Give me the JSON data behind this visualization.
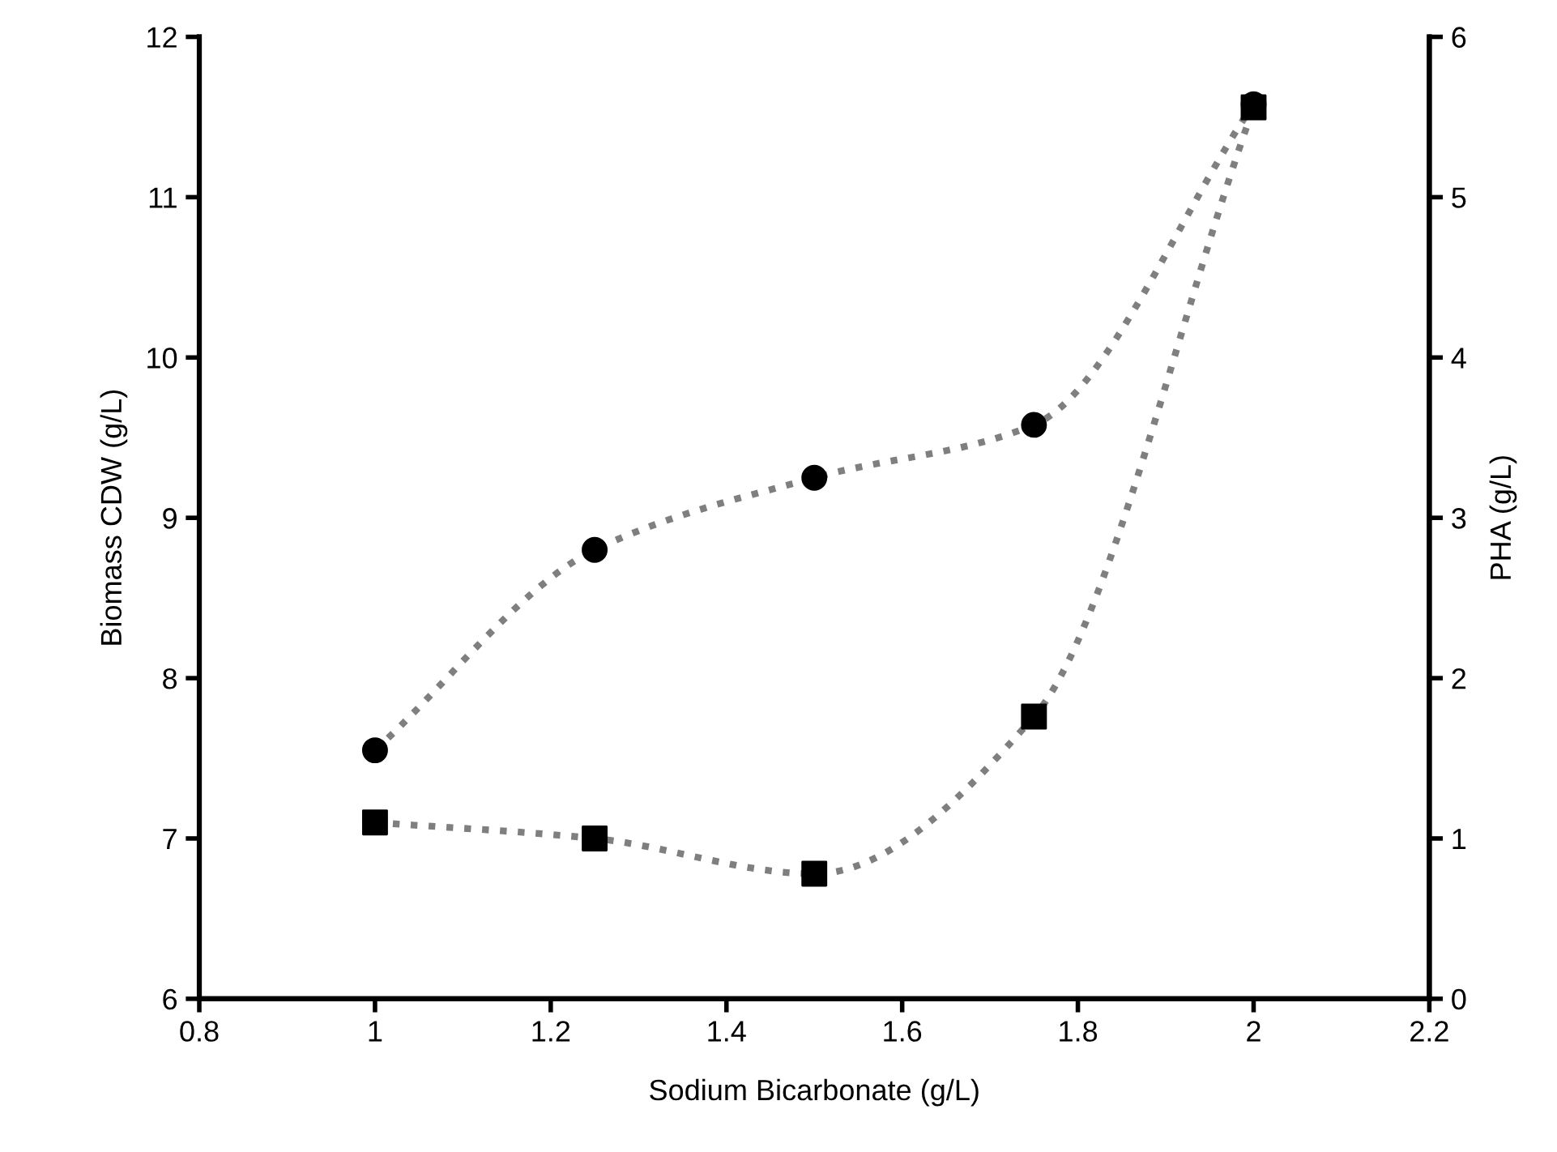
{
  "chart_data": {
    "type": "line",
    "xlabel": "Sodium Bicarbonate (g/L)",
    "ylabel": "Biomass CDW (g/L)",
    "y2label": "PHA (g/L)",
    "x": [
      1,
      1.25,
      1.5,
      1.75,
      2
    ],
    "series": [
      {
        "color": "#000000",
        "marker": "square",
        "values": [
          7.1,
          7.0,
          6.78,
          7.76,
          11.56
        ]
      },
      {
        "axis": "y2",
        "color": "#000000",
        "marker": "circle",
        "values": [
          1.55,
          2.8,
          3.25,
          3.58,
          5.58
        ]
      }
    ],
    "line_style": "dotted",
    "xlim": [
      0.8,
      2.2
    ],
    "xticks": [
      0.8,
      1,
      1.2,
      1.4,
      1.6,
      1.8,
      2,
      2.2
    ],
    "ylim": [
      6,
      12
    ],
    "yticks": [
      6,
      7,
      8,
      9,
      10,
      11,
      12
    ],
    "y2lim": [
      0,
      6
    ],
    "y2ticks": [
      0,
      1,
      2,
      3,
      4,
      5,
      6
    ],
    "grid": false
  }
}
